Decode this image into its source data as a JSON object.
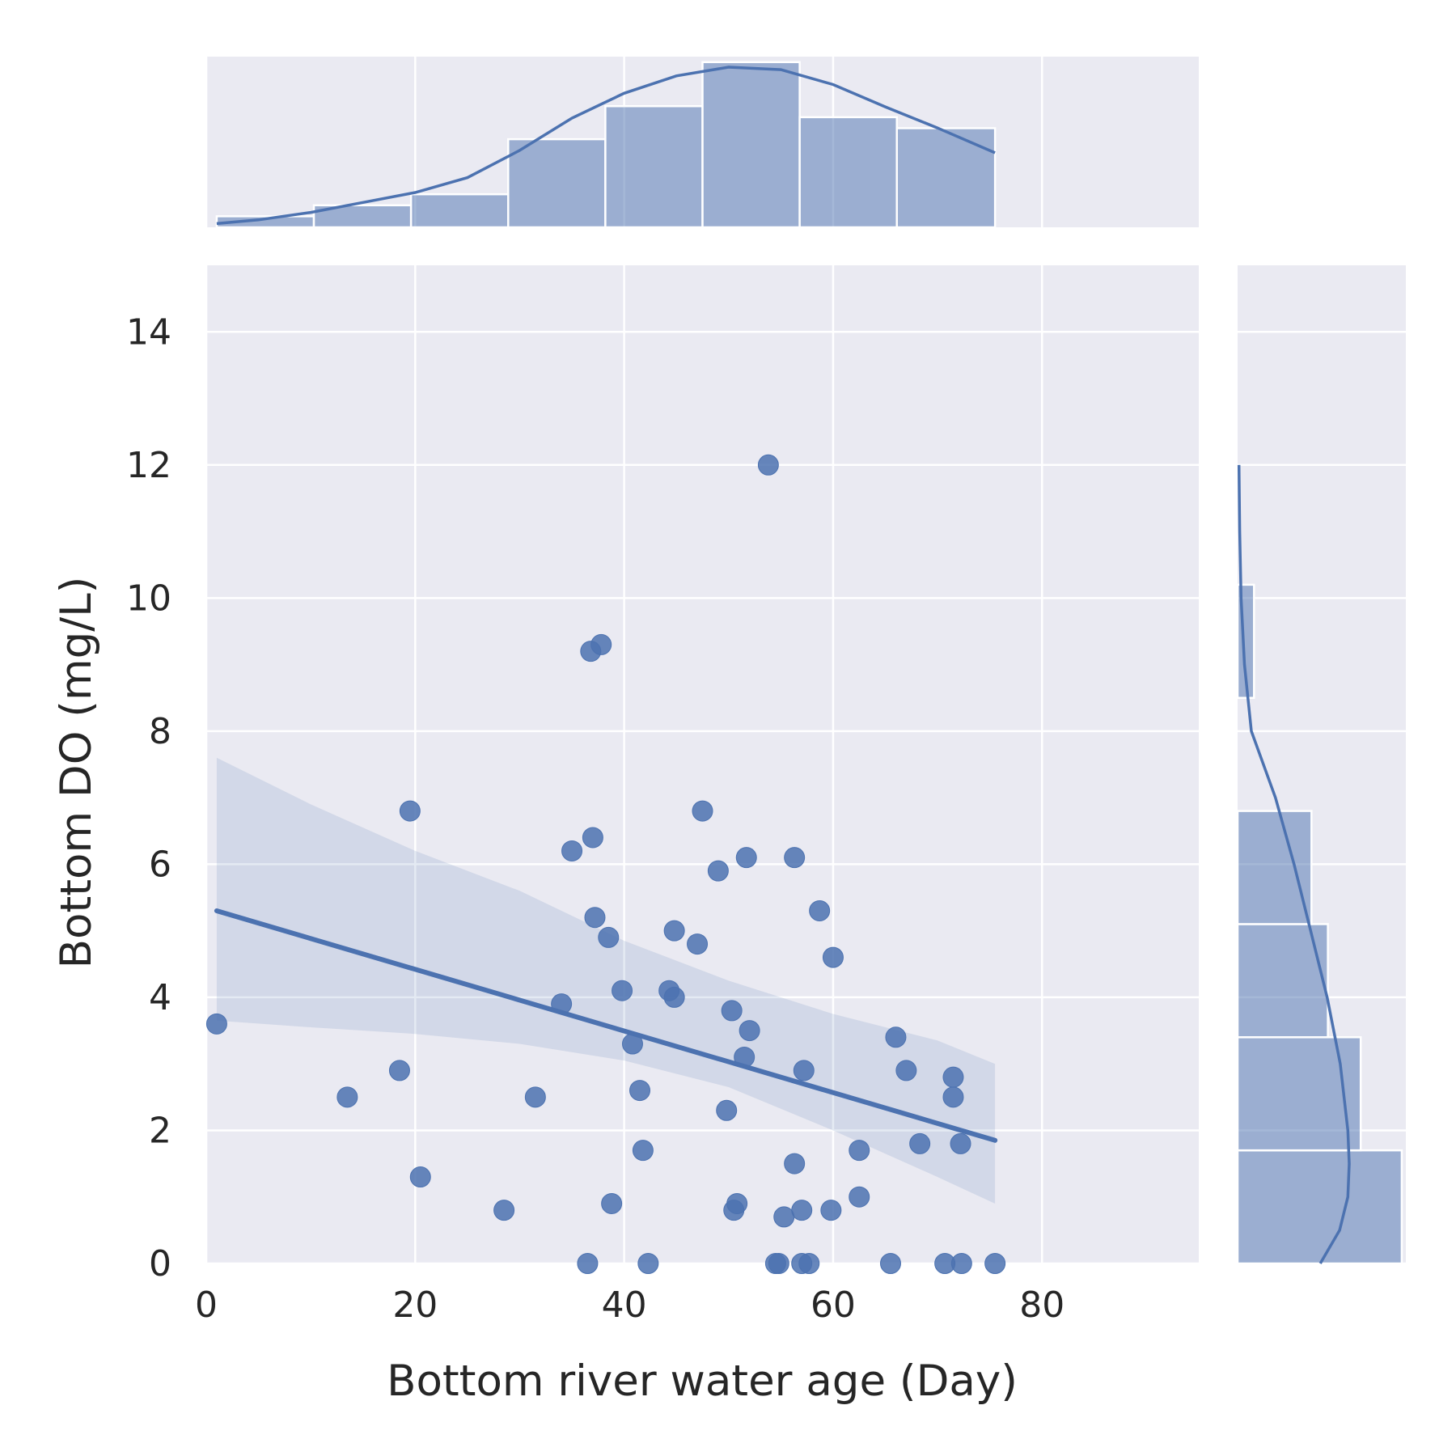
{
  "chart_data": {
    "type": "scatter",
    "xlabel": "Bottom river water age (Day)",
    "ylabel": "Bottom DO (mg/L)",
    "xlim": [
      0,
      95
    ],
    "ylim": [
      0,
      15
    ],
    "x_ticks": [
      0,
      20,
      40,
      60,
      80
    ],
    "y_ticks": [
      0,
      2,
      4,
      6,
      8,
      10,
      12,
      14
    ],
    "grid": true,
    "colors": {
      "background": "#EAEAF2",
      "grid": "#FFFFFF",
      "series": "#4C72B0",
      "text": "#262626"
    },
    "points": [
      [
        1.0,
        3.6
      ],
      [
        13.5,
        2.5
      ],
      [
        18.5,
        2.9
      ],
      [
        19.5,
        6.8
      ],
      [
        20.5,
        1.3
      ],
      [
        28.5,
        0.8
      ],
      [
        31.5,
        2.5
      ],
      [
        34.0,
        3.9
      ],
      [
        35.0,
        6.2
      ],
      [
        36.5,
        0.0
      ],
      [
        36.8,
        9.2
      ],
      [
        37.0,
        6.4
      ],
      [
        37.2,
        5.2
      ],
      [
        37.8,
        9.3
      ],
      [
        38.5,
        4.9
      ],
      [
        38.8,
        0.9
      ],
      [
        39.8,
        4.1
      ],
      [
        40.8,
        3.3
      ],
      [
        41.5,
        2.6
      ],
      [
        41.8,
        1.7
      ],
      [
        42.3,
        0.0
      ],
      [
        44.3,
        4.1
      ],
      [
        44.8,
        4.0
      ],
      [
        44.8,
        5.0
      ],
      [
        47.0,
        4.8
      ],
      [
        47.5,
        6.8
      ],
      [
        49.0,
        5.9
      ],
      [
        49.8,
        2.3
      ],
      [
        50.3,
        3.8
      ],
      [
        50.5,
        0.8
      ],
      [
        50.8,
        0.9
      ],
      [
        51.5,
        3.1
      ],
      [
        51.7,
        6.1
      ],
      [
        52.0,
        3.5
      ],
      [
        53.8,
        12.0
      ],
      [
        54.5,
        0.0
      ],
      [
        54.8,
        0.0
      ],
      [
        55.3,
        0.7
      ],
      [
        56.3,
        1.5
      ],
      [
        56.3,
        6.1
      ],
      [
        57.0,
        0.8
      ],
      [
        57.0,
        0.0
      ],
      [
        57.2,
        2.9
      ],
      [
        57.7,
        0.0
      ],
      [
        58.7,
        5.3
      ],
      [
        59.8,
        0.8
      ],
      [
        60.0,
        4.6
      ],
      [
        62.5,
        1.7
      ],
      [
        62.5,
        1.0
      ],
      [
        65.5,
        0.0
      ],
      [
        66.0,
        3.4
      ],
      [
        67.0,
        2.9
      ],
      [
        68.3,
        1.8
      ],
      [
        70.7,
        0.0
      ],
      [
        71.5,
        2.8
      ],
      [
        71.5,
        2.5
      ],
      [
        72.2,
        1.8
      ],
      [
        72.3,
        0.0
      ],
      [
        75.5,
        0.0
      ]
    ],
    "regression": {
      "x": [
        1.0,
        75.5
      ],
      "y": [
        5.3,
        1.85
      ]
    },
    "confidence_band": {
      "x": [
        1,
        10,
        20,
        30,
        40,
        50,
        60,
        70,
        75.5
      ],
      "upper": [
        7.6,
        6.9,
        6.2,
        5.6,
        4.85,
        4.25,
        3.75,
        3.35,
        3.0
      ],
      "lower": [
        3.65,
        3.55,
        3.45,
        3.3,
        3.05,
        2.65,
        2.0,
        1.3,
        0.9
      ]
    },
    "x_hist": {
      "bin_edges": [
        1.0,
        10.3,
        19.6,
        28.9,
        38.2,
        47.5,
        56.8,
        66.1,
        75.5
      ],
      "counts": [
        1,
        2,
        3,
        8,
        11,
        15,
        10,
        9
      ]
    },
    "x_kde": {
      "x": [
        1,
        5,
        10,
        15,
        20,
        25,
        30,
        35,
        40,
        45,
        50,
        55,
        60,
        65,
        70,
        75.5
      ],
      "y": [
        0.03,
        0.06,
        0.12,
        0.2,
        0.28,
        0.4,
        0.62,
        0.88,
        1.08,
        1.22,
        1.29,
        1.27,
        1.15,
        0.97,
        0.8,
        0.6
      ]
    },
    "y_hist": {
      "bin_edges": [
        0,
        1.7,
        3.4,
        5.1,
        6.8,
        8.5,
        10.2
      ],
      "counts": [
        20,
        15,
        11,
        9,
        0,
        2
      ]
    },
    "y_kde": {
      "y": [
        0,
        0.5,
        1,
        1.5,
        2,
        3,
        4,
        5,
        6,
        7,
        8,
        9,
        10,
        11,
        12
      ],
      "x": [
        1.2,
        1.48,
        1.6,
        1.62,
        1.6,
        1.49,
        1.3,
        1.06,
        0.82,
        0.55,
        0.2,
        0.1,
        0.05,
        0.03,
        0.02
      ]
    }
  }
}
